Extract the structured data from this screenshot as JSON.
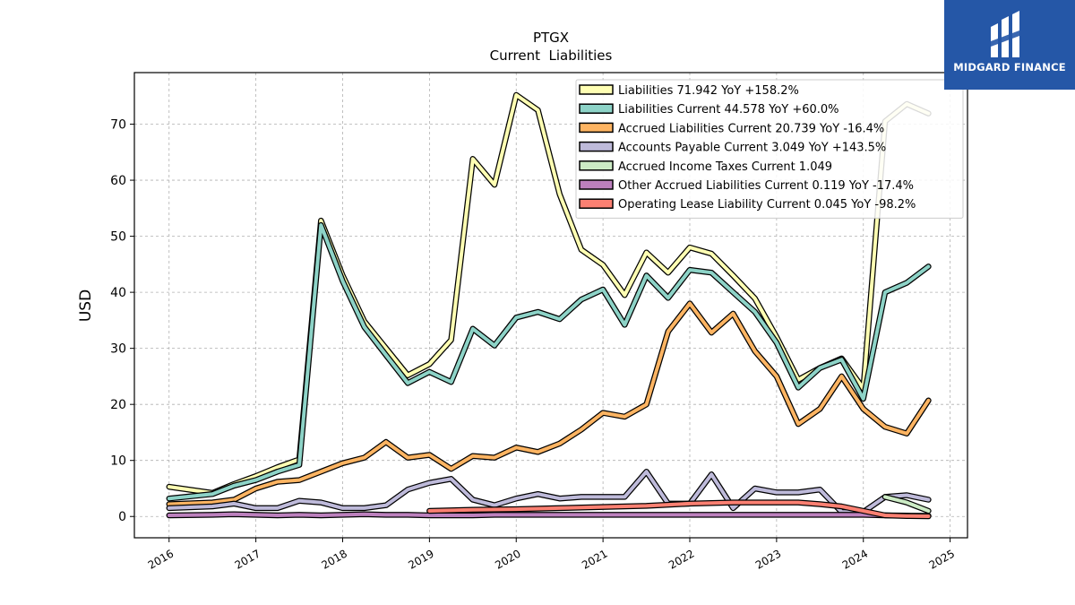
{
  "title": "PTGX",
  "subtitle": "Current  Liabilities",
  "brand": {
    "name": "MIDGARD FINANCE",
    "bg_color": "#2557a7"
  },
  "chart_data": {
    "type": "line",
    "ylabel": "USD",
    "xlabel": "",
    "xlim": [
      2015.6,
      2025.2
    ],
    "ylim": [
      -3.8,
      79.2
    ],
    "yticks": [
      0,
      10,
      20,
      30,
      40,
      50,
      60,
      70
    ],
    "xticks": [
      2016,
      2017,
      2018,
      2019,
      2020,
      2021,
      2022,
      2023,
      2024,
      2025
    ],
    "grid": true,
    "legend_position": "top-right",
    "series": [
      {
        "name": "Liabilities",
        "legend": "Liabilities  71.942 YoY +158.2%",
        "color": "#ffffb3",
        "x": [
          2016.0,
          2016.5,
          2016.75,
          2017.0,
          2017.25,
          2017.5,
          2017.75,
          2018.0,
          2018.25,
          2018.5,
          2018.75,
          2019.0,
          2019.25,
          2019.5,
          2019.75,
          2020.0,
          2020.25,
          2020.5,
          2020.75,
          2021.0,
          2021.25,
          2021.5,
          2021.75,
          2022.0,
          2022.25,
          2022.5,
          2022.75,
          2023.0,
          2023.25,
          2023.5,
          2023.75,
          2024.0,
          2024.25,
          2024.5,
          2024.75
        ],
        "y": [
          5.3,
          4.2,
          5.8,
          7.2,
          8.8,
          10.2,
          52.8,
          43.0,
          34.8,
          30.0,
          25.2,
          27.2,
          31.5,
          63.8,
          59.2,
          75.2,
          72.5,
          57.5,
          47.6,
          44.9,
          39.5,
          47.1,
          43.5,
          48.0,
          46.9,
          43.0,
          38.9,
          32.0,
          24.4,
          26.5,
          28.2,
          22.8,
          70.5,
          73.6,
          71.9
        ]
      },
      {
        "name": "Liabilities Current",
        "legend": "Liabilities Current  44.578 YoY +60.0%",
        "color": "#8dd3c7",
        "x": [
          2016.0,
          2016.5,
          2016.75,
          2017.0,
          2017.25,
          2017.5,
          2017.75,
          2018.0,
          2018.25,
          2018.5,
          2018.75,
          2019.0,
          2019.25,
          2019.5,
          2019.75,
          2020.0,
          2020.25,
          2020.5,
          2020.75,
          2021.0,
          2021.25,
          2021.5,
          2021.75,
          2022.0,
          2022.25,
          2022.5,
          2022.75,
          2023.0,
          2023.25,
          2023.5,
          2023.75,
          2024.0,
          2024.25,
          2024.5,
          2024.75
        ],
        "y": [
          3.2,
          4.0,
          5.5,
          6.5,
          8.0,
          9.2,
          52.0,
          42.0,
          33.8,
          28.8,
          23.8,
          25.8,
          24.0,
          33.5,
          30.5,
          35.5,
          36.5,
          35.2,
          38.7,
          40.5,
          34.2,
          43.0,
          39.0,
          44.0,
          43.5,
          40.0,
          36.5,
          31.0,
          23.0,
          26.5,
          28.0,
          21.0,
          40.0,
          41.7,
          44.6
        ]
      },
      {
        "name": "Accrued Liabilities Current",
        "legend": "Accrued Liabilities Current  20.739 YoY -16.4%",
        "color": "#fdb462",
        "x": [
          2016.0,
          2016.5,
          2016.75,
          2017.0,
          2017.25,
          2017.5,
          2017.75,
          2018.0,
          2018.25,
          2018.5,
          2018.75,
          2019.0,
          2019.25,
          2019.5,
          2019.75,
          2020.0,
          2020.25,
          2020.5,
          2020.75,
          2021.0,
          2021.25,
          2021.5,
          2021.75,
          2022.0,
          2022.25,
          2022.5,
          2022.75,
          2023.0,
          2023.25,
          2023.5,
          2023.75,
          2024.0,
          2024.25,
          2024.5,
          2024.75
        ],
        "y": [
          2.2,
          2.5,
          3.0,
          5.0,
          6.2,
          6.5,
          8.0,
          9.5,
          10.5,
          13.3,
          10.5,
          11.0,
          8.5,
          10.8,
          10.5,
          12.3,
          11.5,
          13.0,
          15.5,
          18.5,
          17.8,
          20.0,
          33.0,
          38.0,
          32.8,
          36.2,
          29.5,
          25.0,
          16.5,
          19.2,
          25.0,
          19.2,
          16.0,
          14.8,
          20.7
        ]
      },
      {
        "name": "Accounts Payable Current",
        "legend": "Accounts Payable Current  3.049 YoY +143.5%",
        "color": "#bebada",
        "x": [
          2016.0,
          2016.5,
          2016.75,
          2017.0,
          2017.25,
          2017.5,
          2017.75,
          2018.0,
          2018.25,
          2018.5,
          2018.75,
          2019.0,
          2019.25,
          2019.5,
          2019.75,
          2020.0,
          2020.25,
          2020.5,
          2020.75,
          2021.0,
          2021.25,
          2021.5,
          2021.75,
          2022.0,
          2022.25,
          2022.5,
          2022.75,
          2023.0,
          2023.25,
          2023.5,
          2023.75,
          2024.0,
          2024.25,
          2024.5,
          2024.75
        ],
        "y": [
          1.5,
          1.8,
          2.3,
          1.5,
          1.5,
          2.8,
          2.5,
          1.5,
          1.5,
          2.0,
          4.8,
          6.0,
          6.7,
          3.0,
          2.0,
          3.2,
          4.0,
          3.2,
          3.5,
          3.5,
          3.5,
          8.0,
          2.3,
          2.3,
          7.5,
          1.5,
          5.0,
          4.3,
          4.3,
          4.8,
          0.8,
          0.8,
          3.5,
          3.8,
          3.0
        ]
      },
      {
        "name": "Accrued Income Taxes Current",
        "legend": "Accrued Income Taxes Current  1.049",
        "color": "#ccebc5",
        "x": [
          2024.25,
          2024.5,
          2024.75
        ],
        "y": [
          3.5,
          2.5,
          1.0
        ]
      },
      {
        "name": "Other Accrued Liabilities Current",
        "legend": "Other Accrued Liabilities Current  0.119 YoY -17.4%",
        "color": "#bc80bd",
        "x": [
          2016.0,
          2016.5,
          2016.75,
          2017.0,
          2017.25,
          2017.5,
          2017.75,
          2018.0,
          2018.25,
          2018.5,
          2018.75,
          2019.0,
          2019.25,
          2019.5,
          2019.75,
          2020.0,
          2020.25,
          2020.5,
          2020.75,
          2021.0,
          2021.25,
          2021.5,
          2021.75,
          2022.0,
          2022.25,
          2022.5,
          2022.75,
          2023.0,
          2023.25,
          2023.5,
          2023.75,
          2024.0,
          2024.25,
          2024.5,
          2024.75
        ],
        "y": [
          0.2,
          0.3,
          0.4,
          0.3,
          0.2,
          0.3,
          0.2,
          0.3,
          0.4,
          0.3,
          0.3,
          0.2,
          0.2,
          0.2,
          0.3,
          0.3,
          0.3,
          0.3,
          0.3,
          0.3,
          0.3,
          0.3,
          0.3,
          0.3,
          0.3,
          0.3,
          0.3,
          0.3,
          0.3,
          0.3,
          0.3,
          0.3,
          0.2,
          0.15,
          0.12
        ]
      },
      {
        "name": "Operating Lease Liability Current",
        "legend": "Operating Lease Liability Current  0.045 YoY -98.2%",
        "color": "#fb8072",
        "x": [
          2019.0,
          2019.5,
          2020.0,
          2020.5,
          2021.0,
          2021.5,
          2022.0,
          2022.25,
          2022.5,
          2022.75,
          2023.0,
          2023.25,
          2023.5,
          2023.75,
          2024.0,
          2024.25,
          2024.5,
          2024.75
        ],
        "y": [
          1.0,
          1.2,
          1.3,
          1.5,
          1.7,
          1.9,
          2.3,
          2.4,
          2.5,
          2.5,
          2.5,
          2.5,
          2.2,
          1.8,
          1.0,
          0.2,
          0.08,
          0.045
        ]
      }
    ]
  }
}
